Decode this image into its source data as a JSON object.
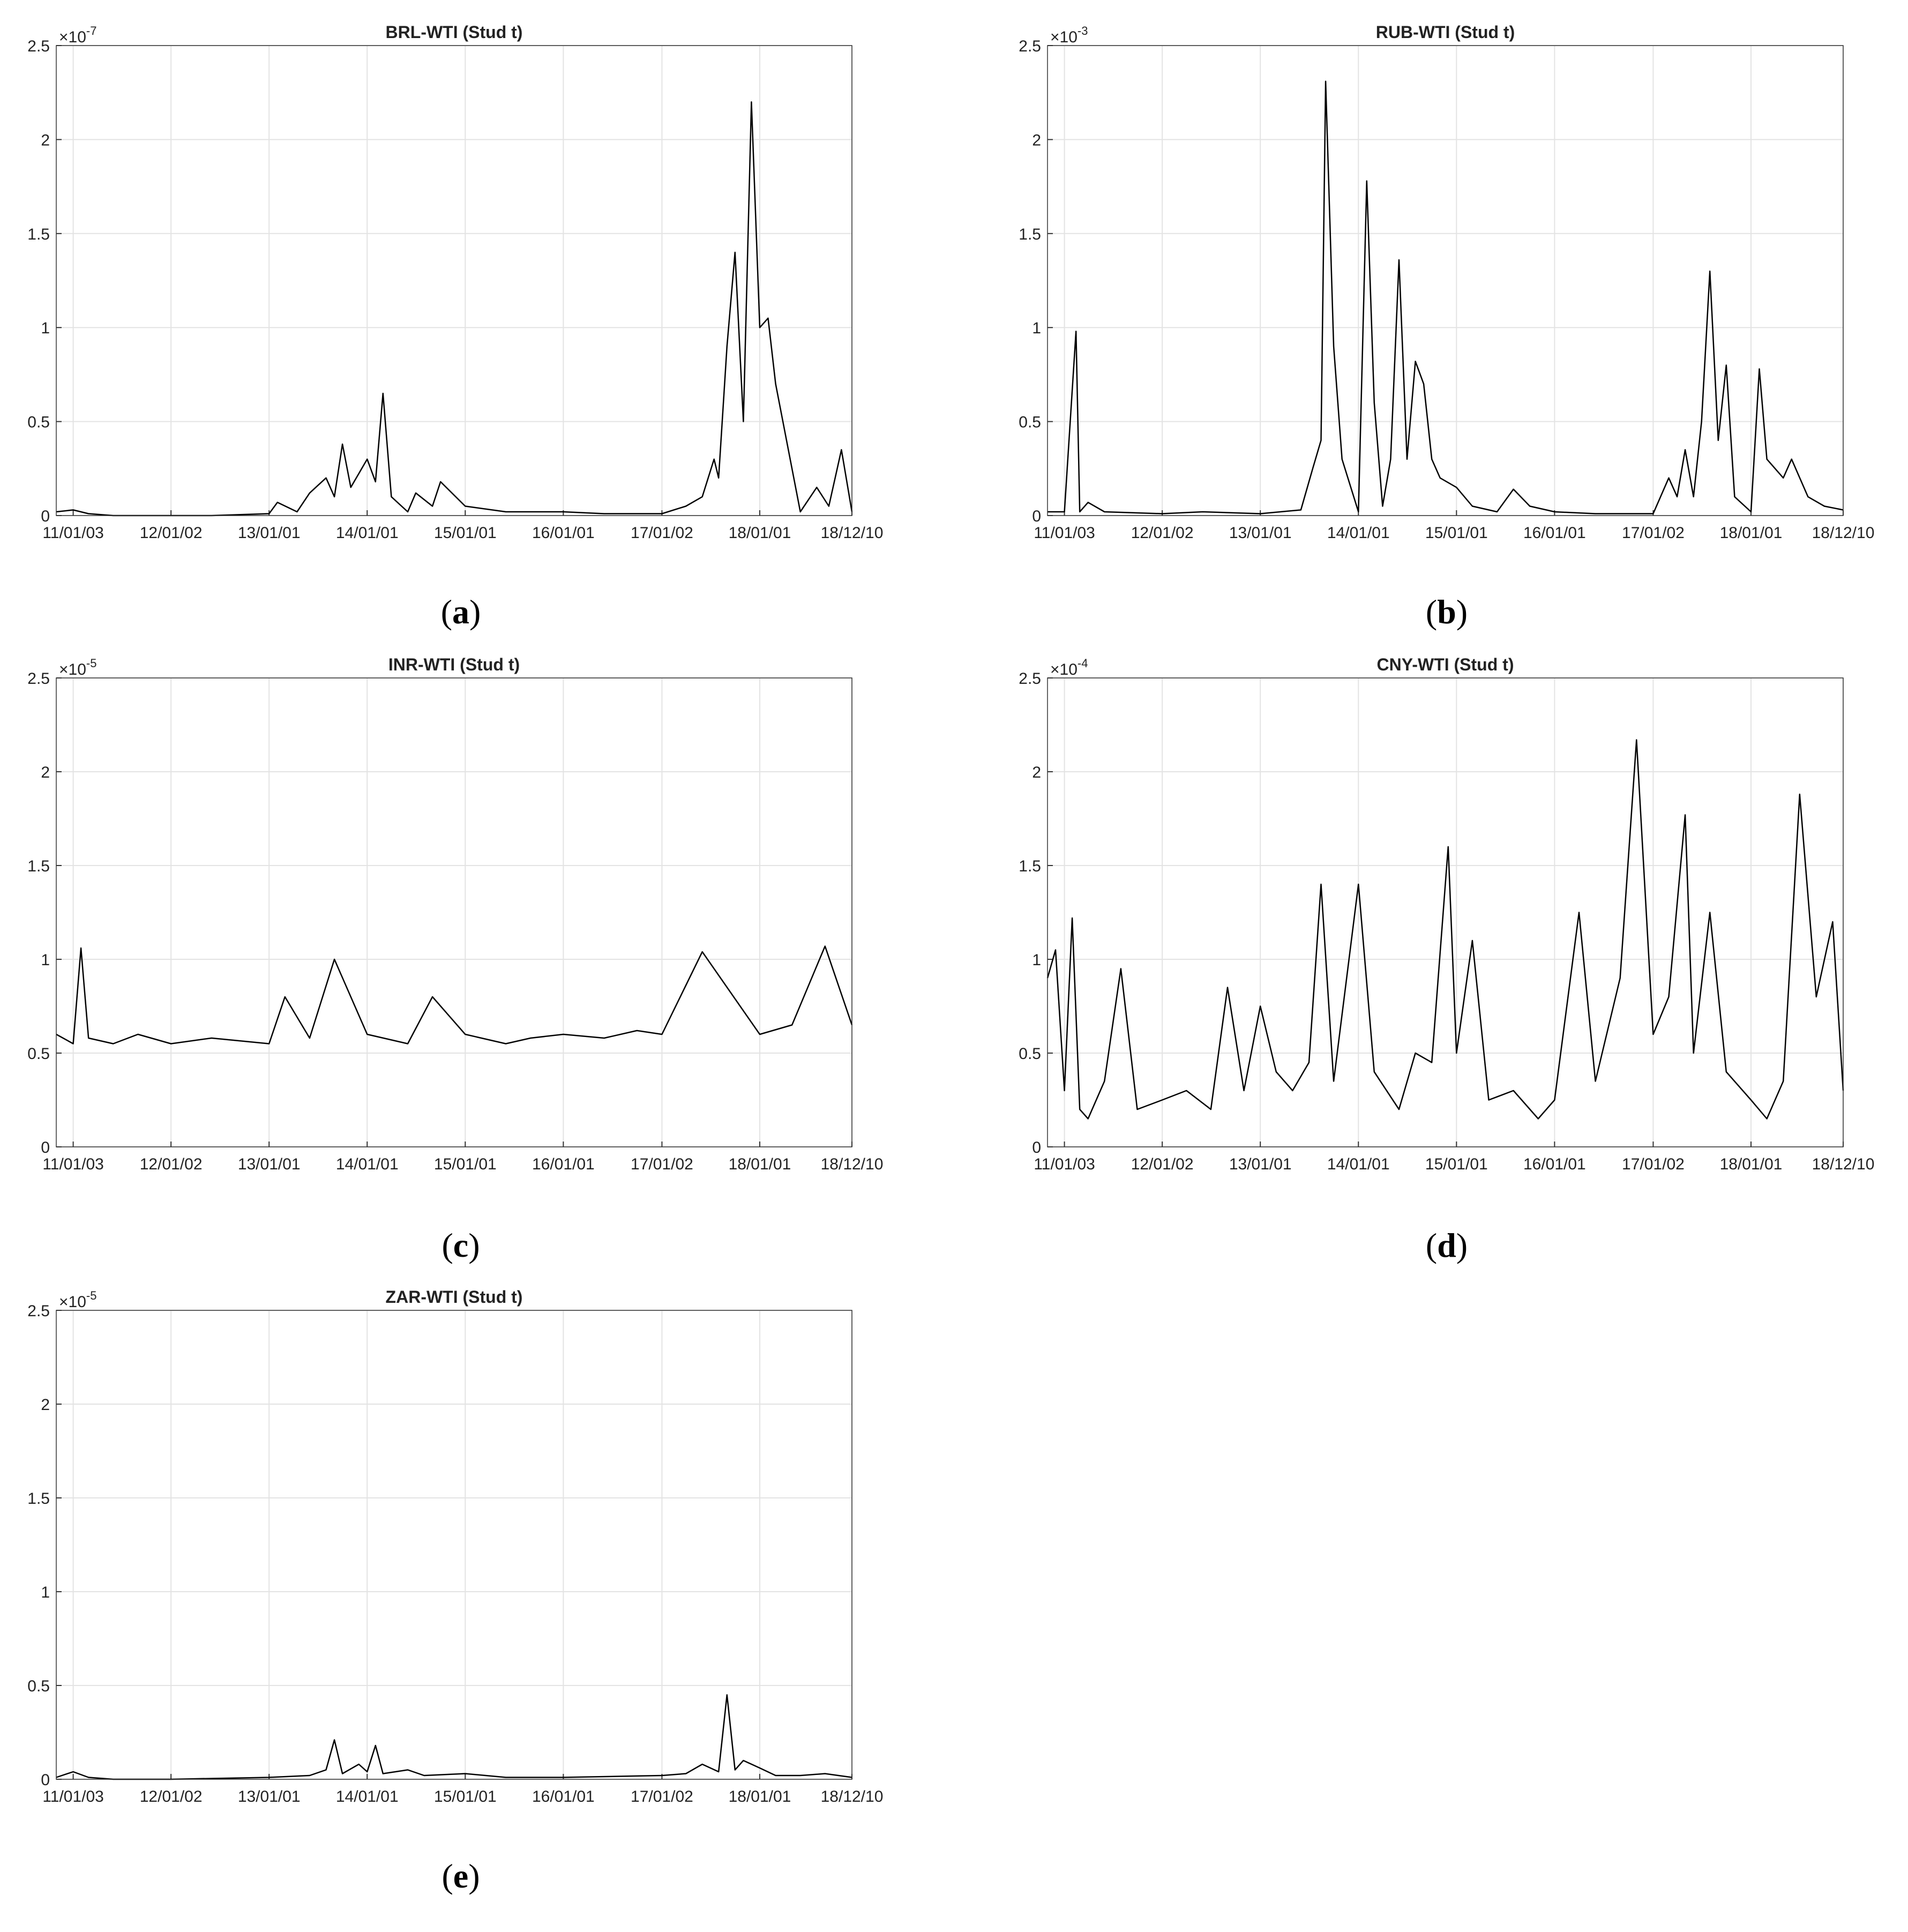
{
  "figure": {
    "panels": [
      {
        "label": "(a)",
        "letter": "a"
      },
      {
        "label": "(b)",
        "letter": "b"
      },
      {
        "label": "(c)",
        "letter": "c"
      },
      {
        "label": "(d)",
        "letter": "d"
      },
      {
        "label": "(e)",
        "letter": "e"
      }
    ]
  },
  "chart_data": [
    {
      "type": "line",
      "title": "BRL-WTI (Stud t)",
      "xlabel": "",
      "ylabel": "",
      "exponent_base": "×10",
      "exponent_power": "-7",
      "ylim": [
        0,
        2.5
      ],
      "yticks": [
        0,
        0.5,
        1,
        1.5,
        2,
        2.5
      ],
      "ytick_labels": [
        "0",
        "0.5",
        "1",
        "1.5",
        "2",
        "2.5"
      ],
      "xtick_labels": [
        "11/01/03",
        "12/01/02",
        "13/01/01",
        "14/01/01",
        "15/01/01",
        "16/01/01",
        "17/01/02",
        "18/01/01",
        "18/12/10"
      ],
      "xtick_dates": [
        "2011-01-03",
        "2012-01-02",
        "2013-01-01",
        "2014-01-01",
        "2015-01-01",
        "2016-01-01",
        "2017-01-02",
        "2018-01-01",
        "2018-12-10"
      ],
      "xlim": [
        "2010-11-01",
        "2018-12-10"
      ],
      "grid": true,
      "color": "#000000",
      "series": [
        {
          "x": [
            "2010-11-01",
            "2011-01-03",
            "2011-03-01",
            "2011-06-01",
            "2012-01-02",
            "2012-06-01",
            "2013-01-01",
            "2013-02-01",
            "2013-04-15",
            "2013-06-01",
            "2013-08-01",
            "2013-09-01",
            "2013-10-01",
            "2013-11-01",
            "2014-01-01",
            "2014-02-01",
            "2014-03-01",
            "2014-04-01",
            "2014-06-01",
            "2014-07-01",
            "2014-09-01",
            "2014-10-01",
            "2015-01-01",
            "2015-06-01",
            "2016-01-01",
            "2016-06-01",
            "2017-01-02",
            "2017-04-01",
            "2017-06-01",
            "2017-07-15",
            "2017-08-01",
            "2017-09-01",
            "2017-10-01",
            "2017-11-01",
            "2017-12-01",
            "2018-01-01",
            "2018-02-01",
            "2018-03-01",
            "2018-06-01",
            "2018-08-01",
            "2018-09-15",
            "2018-11-01",
            "2018-12-10"
          ],
          "y": [
            0.02,
            0.03,
            0.01,
            0,
            0,
            0,
            0.01,
            0.07,
            0.02,
            0.12,
            0.2,
            0.1,
            0.38,
            0.15,
            0.3,
            0.18,
            0.65,
            0.1,
            0.02,
            0.12,
            0.05,
            0.18,
            0.05,
            0.02,
            0.02,
            0.01,
            0.01,
            0.05,
            0.1,
            0.3,
            0.2,
            0.9,
            1.4,
            0.5,
            2.2,
            1.0,
            1.05,
            0.7,
            0.02,
            0.15,
            0.05,
            0.35,
            0.02
          ]
        }
      ]
    },
    {
      "type": "line",
      "title": "RUB-WTI (Stud t)",
      "xlabel": "",
      "ylabel": "",
      "exponent_base": "×10",
      "exponent_power": "-3",
      "ylim": [
        0,
        2.5
      ],
      "yticks": [
        0,
        0.5,
        1,
        1.5,
        2,
        2.5
      ],
      "ytick_labels": [
        "0",
        "0.5",
        "1",
        "1.5",
        "2",
        "2.5"
      ],
      "xtick_labels": [
        "11/01/03",
        "12/01/02",
        "13/01/01",
        "14/01/01",
        "15/01/01",
        "16/01/01",
        "17/01/02",
        "18/01/01",
        "18/12/10"
      ],
      "xtick_dates": [
        "2011-01-03",
        "2012-01-02",
        "2013-01-01",
        "2014-01-01",
        "2015-01-01",
        "2016-01-01",
        "2017-01-02",
        "2018-01-01",
        "2018-12-10"
      ],
      "xlim": [
        "2010-11-01",
        "2018-12-10"
      ],
      "grid": true,
      "color": "#000000",
      "series": [
        {
          "x": [
            "2010-11-01",
            "2011-01-03",
            "2011-02-15",
            "2011-03-01",
            "2011-04-01",
            "2011-06-01",
            "2012-01-02",
            "2012-06-01",
            "2013-01-01",
            "2013-06-01",
            "2013-07-15",
            "2013-08-15",
            "2013-09-01",
            "2013-10-01",
            "2013-11-01",
            "2014-01-01",
            "2014-02-01",
            "2014-03-01",
            "2014-04-01",
            "2014-05-01",
            "2014-06-01",
            "2014-07-01",
            "2014-08-01",
            "2014-09-01",
            "2014-10-01",
            "2014-11-01",
            "2015-01-01",
            "2015-03-01",
            "2015-06-01",
            "2015-08-01",
            "2015-10-01",
            "2016-01-01",
            "2016-06-01",
            "2017-01-02",
            "2017-03-01",
            "2017-04-01",
            "2017-05-01",
            "2017-06-01",
            "2017-07-01",
            "2017-08-01",
            "2017-09-01",
            "2017-10-01",
            "2017-11-01",
            "2018-01-01",
            "2018-02-01",
            "2018-03-01",
            "2018-05-01",
            "2018-06-01",
            "2018-08-01",
            "2018-10-01",
            "2018-12-10"
          ],
          "y": [
            0.02,
            0.02,
            0.98,
            0.02,
            0.07,
            0.02,
            0.01,
            0.02,
            0.01,
            0.03,
            0.25,
            0.4,
            2.31,
            0.9,
            0.3,
            0.02,
            1.78,
            0.6,
            0.05,
            0.3,
            1.36,
            0.3,
            0.82,
            0.7,
            0.3,
            0.2,
            0.15,
            0.05,
            0.02,
            0.14,
            0.05,
            0.02,
            0.01,
            0.01,
            0.2,
            0.1,
            0.35,
            0.1,
            0.5,
            1.3,
            0.4,
            0.8,
            0.1,
            0.02,
            0.78,
            0.3,
            0.2,
            0.3,
            0.1,
            0.05,
            0.03
          ]
        }
      ]
    },
    {
      "type": "line",
      "title": "INR-WTI (Stud t)",
      "xlabel": "",
      "ylabel": "",
      "exponent_base": "×10",
      "exponent_power": "-5",
      "ylim": [
        0,
        2.5
      ],
      "yticks": [
        0,
        0.5,
        1,
        1.5,
        2,
        2.5
      ],
      "ytick_labels": [
        "0",
        "0.5",
        "1",
        "1.5",
        "2",
        "2.5"
      ],
      "xtick_labels": [
        "11/01/03",
        "12/01/02",
        "13/01/01",
        "14/01/01",
        "15/01/01",
        "16/01/01",
        "17/01/02",
        "18/01/01",
        "18/12/10"
      ],
      "xtick_dates": [
        "2011-01-03",
        "2012-01-02",
        "2013-01-01",
        "2014-01-01",
        "2015-01-01",
        "2016-01-01",
        "2017-01-02",
        "2018-01-01",
        "2018-12-10"
      ],
      "xlim": [
        "2010-11-01",
        "2018-12-10"
      ],
      "grid": true,
      "color": "#000000",
      "series": [
        {
          "x": [
            "2010-11-01",
            "2011-01-03",
            "2011-02-01",
            "2011-03-01",
            "2011-06-01",
            "2011-09-01",
            "2012-01-02",
            "2012-06-01",
            "2013-01-01",
            "2013-03-01",
            "2013-06-01",
            "2013-09-01",
            "2014-01-01",
            "2014-06-01",
            "2014-09-01",
            "2015-01-01",
            "2015-06-01",
            "2015-09-01",
            "2016-01-01",
            "2016-06-01",
            "2016-10-01",
            "2017-01-02",
            "2017-06-01",
            "2018-01-01",
            "2018-05-01",
            "2018-09-01",
            "2018-12-10"
          ],
          "y": [
            0.6,
            0.55,
            1.06,
            0.58,
            0.55,
            0.6,
            0.55,
            0.58,
            0.55,
            0.8,
            0.58,
            1.0,
            0.6,
            0.55,
            0.8,
            0.6,
            0.55,
            0.58,
            0.6,
            0.58,
            0.62,
            0.6,
            1.04,
            0.6,
            0.65,
            1.07,
            0.65
          ]
        }
      ]
    },
    {
      "type": "line",
      "title": "CNY-WTI (Stud t)",
      "xlabel": "",
      "ylabel": "",
      "exponent_base": "×10",
      "exponent_power": "-4",
      "ylim": [
        0,
        2.5
      ],
      "yticks": [
        0,
        0.5,
        1,
        1.5,
        2,
        2.5
      ],
      "ytick_labels": [
        "0",
        "0.5",
        "1",
        "1.5",
        "2",
        "2.5"
      ],
      "xtick_labels": [
        "11/01/03",
        "12/01/02",
        "13/01/01",
        "14/01/01",
        "15/01/01",
        "16/01/01",
        "17/01/02",
        "18/01/01",
        "18/12/10"
      ],
      "xtick_dates": [
        "2011-01-03",
        "2012-01-02",
        "2013-01-01",
        "2014-01-01",
        "2015-01-01",
        "2016-01-01",
        "2017-01-02",
        "2018-01-01",
        "2018-12-10"
      ],
      "xlim": [
        "2010-11-01",
        "2018-12-10"
      ],
      "grid": true,
      "color": "#000000",
      "series": [
        {
          "x": [
            "2010-11-01",
            "2010-12-01",
            "2011-01-03",
            "2011-02-01",
            "2011-03-01",
            "2011-04-01",
            "2011-06-01",
            "2011-08-01",
            "2011-10-01",
            "2012-01-02",
            "2012-04-01",
            "2012-07-01",
            "2012-09-01",
            "2012-11-01",
            "2013-01-01",
            "2013-03-01",
            "2013-05-01",
            "2013-07-01",
            "2013-08-15",
            "2013-10-01",
            "2014-01-01",
            "2014-03-01",
            "2014-06-01",
            "2014-08-01",
            "2014-10-01",
            "2014-12-01",
            "2015-01-01",
            "2015-03-01",
            "2015-05-01",
            "2015-08-01",
            "2015-11-01",
            "2016-01-01",
            "2016-04-01",
            "2016-06-01",
            "2016-09-01",
            "2016-11-01",
            "2017-01-02",
            "2017-03-01",
            "2017-05-01",
            "2017-06-01",
            "2017-08-01",
            "2017-10-01",
            "2018-01-01",
            "2018-03-01",
            "2018-05-01",
            "2018-07-01",
            "2018-09-01",
            "2018-11-01",
            "2018-12-10"
          ],
          "y": [
            0.9,
            1.05,
            0.3,
            1.22,
            0.2,
            0.15,
            0.35,
            0.95,
            0.2,
            0.25,
            0.3,
            0.2,
            0.85,
            0.3,
            0.75,
            0.4,
            0.3,
            0.45,
            1.4,
            0.35,
            1.4,
            0.4,
            0.2,
            0.5,
            0.45,
            1.6,
            0.5,
            1.1,
            0.25,
            0.3,
            0.15,
            0.25,
            1.25,
            0.35,
            0.9,
            2.17,
            0.6,
            0.8,
            1.77,
            0.5,
            1.25,
            0.4,
            0.25,
            0.15,
            0.35,
            1.88,
            0.8,
            1.2,
            0.3
          ]
        }
      ]
    },
    {
      "type": "line",
      "title": "ZAR-WTI (Stud t)",
      "xlabel": "",
      "ylabel": "",
      "exponent_base": "×10",
      "exponent_power": "-5",
      "ylim": [
        0,
        2.5
      ],
      "yticks": [
        0,
        0.5,
        1,
        1.5,
        2,
        2.5
      ],
      "ytick_labels": [
        "0",
        "0.5",
        "1",
        "1.5",
        "2",
        "2.5"
      ],
      "xtick_labels": [
        "11/01/03",
        "12/01/02",
        "13/01/01",
        "14/01/01",
        "15/01/01",
        "16/01/01",
        "17/01/02",
        "18/01/01",
        "18/12/10"
      ],
      "xtick_dates": [
        "2011-01-03",
        "2012-01-02",
        "2013-01-01",
        "2014-01-01",
        "2015-01-01",
        "2016-01-01",
        "2017-01-02",
        "2018-01-01",
        "2018-12-10"
      ],
      "xlim": [
        "2010-11-01",
        "2018-12-10"
      ],
      "grid": true,
      "color": "#000000",
      "series": [
        {
          "x": [
            "2010-11-01",
            "2011-01-03",
            "2011-03-01",
            "2011-06-01",
            "2012-01-02",
            "2013-01-01",
            "2013-06-01",
            "2013-08-01",
            "2013-09-01",
            "2013-10-01",
            "2013-12-01",
            "2014-01-01",
            "2014-02-01",
            "2014-03-01",
            "2014-06-01",
            "2014-08-01",
            "2015-01-01",
            "2015-06-01",
            "2016-01-01",
            "2017-01-02",
            "2017-04-01",
            "2017-06-01",
            "2017-08-01",
            "2017-09-01",
            "2017-10-01",
            "2017-11-01",
            "2018-01-01",
            "2018-03-01",
            "2018-06-01",
            "2018-09-01",
            "2018-12-10"
          ],
          "y": [
            0.01,
            0.04,
            0.01,
            0,
            0,
            0.01,
            0.02,
            0.05,
            0.21,
            0.03,
            0.08,
            0.04,
            0.18,
            0.03,
            0.05,
            0.02,
            0.03,
            0.01,
            0.01,
            0.02,
            0.03,
            0.08,
            0.04,
            0.45,
            0.05,
            0.1,
            0.06,
            0.02,
            0.02,
            0.03,
            0.01
          ]
        }
      ]
    }
  ]
}
